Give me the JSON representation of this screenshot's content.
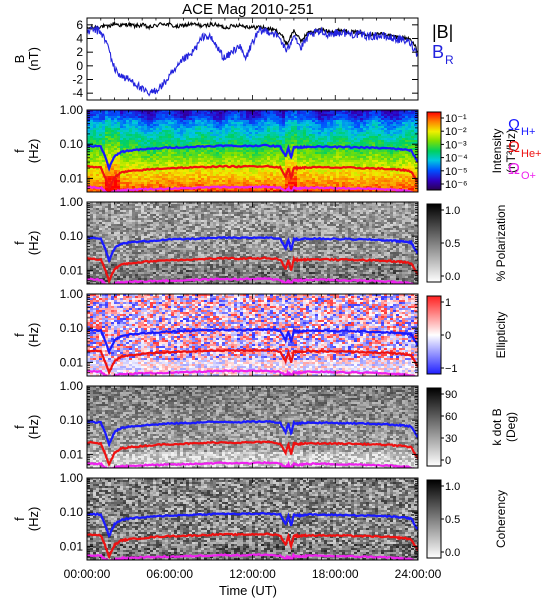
{
  "chart_data": {
    "type": "multi-panel spectrogram",
    "title": "ACE Mag 2010-251",
    "xlabel": "Time (UT)",
    "x_ticks": [
      "00:00:00",
      "06:00:00",
      "12:00:00",
      "18:00:00",
      "24:00:00"
    ],
    "x_range_hours": [
      0,
      24
    ],
    "freq_ticks": [
      "1.00",
      "0.10",
      "0.01"
    ],
    "freq_range_hz": [
      0.004,
      1.0
    ],
    "freq_scale": "log",
    "panels": [
      {
        "id": "b-panel",
        "ylabel_top": "B",
        "ylabel_bottom": "(nT)",
        "y_ticks": [
          "6",
          "4",
          "2",
          "0",
          "-2",
          "-4"
        ],
        "y_range": [
          -5,
          7
        ],
        "series": [
          {
            "name": "|B|",
            "color": "#000000",
            "x": [
              0,
              0.5,
              1,
              1.5,
              2,
              2.5,
              3,
              3.5,
              4,
              4.5,
              5,
              5.5,
              6,
              6.5,
              7,
              7.5,
              8,
              8.5,
              9,
              9.5,
              10,
              10.5,
              11,
              11.5,
              12,
              12.5,
              13,
              13.5,
              14,
              14.5,
              15,
              15.5,
              16,
              16.5,
              17,
              17.5,
              18,
              18.5,
              19,
              19.5,
              20,
              20.5,
              21,
              21.5,
              22,
              22.5,
              23,
              23.5,
              24
            ],
            "values": [
              5.5,
              5.6,
              5.8,
              5.7,
              6.2,
              5.9,
              6.1,
              5.8,
              6.0,
              5.6,
              5.9,
              6.2,
              6.0,
              5.7,
              5.9,
              6.1,
              6.0,
              5.8,
              6.1,
              5.9,
              5.6,
              5.8,
              6.0,
              5.8,
              5.6,
              5.7,
              5.5,
              5.3,
              4.8,
              3.2,
              5.2,
              3.6,
              4.8,
              5.1,
              5.3,
              5.0,
              5.1,
              5.2,
              5.0,
              4.9,
              4.8,
              4.6,
              4.7,
              4.6,
              4.4,
              4.2,
              4.1,
              3.9,
              2.0
            ]
          },
          {
            "name": "B",
            "name_subscript": "R",
            "color": "#2222dd",
            "x": [
              0,
              0.5,
              1,
              1.5,
              2,
              2.5,
              3,
              3.5,
              4,
              4.5,
              5,
              5.5,
              6,
              6.5,
              7,
              7.5,
              8,
              8.5,
              9,
              9.5,
              10,
              10.5,
              11,
              11.5,
              12,
              12.5,
              13,
              13.5,
              14,
              14.5,
              15,
              15.5,
              16,
              16.5,
              17,
              17.5,
              18,
              18.5,
              19,
              19.5,
              20,
              20.5,
              21,
              21.5,
              22,
              22.5,
              23,
              23.5,
              24
            ],
            "values": [
              5.0,
              5.3,
              5.0,
              3.0,
              -0.5,
              -1.5,
              -2.0,
              -2.5,
              -3.5,
              -4.2,
              -3.5,
              -2.8,
              -1.5,
              -0.5,
              1.0,
              1.5,
              3.0,
              4.5,
              4.0,
              2.5,
              1.0,
              2.0,
              3.0,
              1.0,
              3.5,
              5.0,
              5.2,
              4.8,
              4.0,
              2.0,
              4.8,
              2.5,
              4.2,
              4.8,
              4.9,
              4.7,
              4.8,
              4.9,
              4.7,
              4.6,
              4.5,
              4.3,
              4.4,
              4.3,
              4.1,
              3.9,
              3.7,
              3.3,
              1.5
            ]
          }
        ]
      },
      {
        "id": "intensity-panel",
        "ylabel_top": "f",
        "ylabel_bottom": "(Hz)",
        "colorbar_label": "Intensity",
        "colorbar_units": "(nT²/Hz)",
        "colorbar_ticks": [
          "10⁻¹",
          "10⁻²",
          "10⁻³",
          "10⁻⁴",
          "10⁻⁵",
          "10⁻⁶"
        ],
        "colormap": "rainbow"
      },
      {
        "id": "polarization-panel",
        "ylabel_top": "f",
        "ylabel_bottom": "(Hz)",
        "colorbar_label": "% Polarization",
        "colorbar_ticks": [
          "1.0",
          "0.5",
          "0.0"
        ],
        "colormap": "gray"
      },
      {
        "id": "ellipticity-panel",
        "ylabel_top": "f",
        "ylabel_bottom": "(Hz)",
        "colorbar_label": "Ellipticity",
        "colorbar_ticks": [
          "1",
          "0",
          "−1"
        ],
        "colormap": "red-white-blue"
      },
      {
        "id": "kdotb-panel",
        "ylabel_top": "f",
        "ylabel_bottom": "(Hz)",
        "colorbar_label": "k dot B",
        "colorbar_units": "(Deg)",
        "colorbar_ticks": [
          "90",
          "60",
          "30",
          "0"
        ],
        "colormap": "gray"
      },
      {
        "id": "coherency-panel",
        "ylabel_top": "f",
        "ylabel_bottom": "(Hz)",
        "colorbar_label": "Coherency",
        "colorbar_ticks": [
          "1.0",
          "0.5",
          "0.0"
        ],
        "colormap": "gray"
      }
    ],
    "gyrofrequency_lines": [
      {
        "name": "Ω",
        "name_subscript": "H+",
        "color": "#1a1aff",
        "x": [
          0,
          1,
          1.3,
          1.6,
          2,
          2.5,
          3,
          4,
          5,
          6,
          7,
          8,
          9,
          10,
          11,
          12,
          13,
          14,
          14.4,
          14.6,
          14.8,
          15,
          15.3,
          15.6,
          16,
          17,
          18,
          19,
          20,
          21,
          22,
          22.5,
          23,
          23.5,
          24
        ],
        "values": [
          0.09,
          0.085,
          0.045,
          0.02,
          0.045,
          0.06,
          0.065,
          0.07,
          0.075,
          0.08,
          0.082,
          0.085,
          0.088,
          0.09,
          0.088,
          0.09,
          0.092,
          0.085,
          0.045,
          0.08,
          0.04,
          0.085,
          0.08,
          0.082,
          0.085,
          0.084,
          0.083,
          0.082,
          0.08,
          0.078,
          0.075,
          0.072,
          0.07,
          0.065,
          0.03
        ]
      },
      {
        "name": "Ω",
        "name_subscript": "He+",
        "color": "#ee1111",
        "x": [
          0,
          1,
          1.3,
          1.6,
          2,
          2.5,
          3,
          4,
          5,
          6,
          7,
          8,
          9,
          10,
          11,
          12,
          13,
          14,
          14.4,
          14.6,
          14.8,
          15,
          15.3,
          15.6,
          16,
          17,
          18,
          19,
          20,
          21,
          22,
          22.5,
          23,
          23.5,
          24
        ],
        "values": [
          0.0225,
          0.021,
          0.011,
          0.005,
          0.011,
          0.015,
          0.016,
          0.0175,
          0.019,
          0.02,
          0.0205,
          0.021,
          0.022,
          0.0225,
          0.022,
          0.0225,
          0.023,
          0.021,
          0.011,
          0.02,
          0.01,
          0.021,
          0.02,
          0.0205,
          0.021,
          0.021,
          0.0207,
          0.0205,
          0.02,
          0.0195,
          0.0187,
          0.018,
          0.0175,
          0.016,
          0.0075
        ]
      },
      {
        "name": "Ω",
        "name_subscript": "O+",
        "color": "#ee22ee",
        "x": [
          0,
          1,
          1.3,
          1.6,
          2,
          2.5,
          3,
          4,
          5,
          6,
          7,
          8,
          9,
          10,
          11,
          12,
          13,
          14,
          14.4,
          14.6,
          14.8,
          15,
          15.3,
          15.6,
          16,
          17,
          18,
          19,
          20,
          21,
          22,
          22.5,
          23,
          23.5,
          24
        ],
        "values": [
          0.0056,
          0.0053,
          0.0042,
          0.0035,
          0.0042,
          0.0045,
          0.0046,
          0.0048,
          0.0049,
          0.005,
          0.0051,
          0.0053,
          0.0055,
          0.0056,
          0.0055,
          0.0056,
          0.0057,
          0.0053,
          0.0042,
          0.005,
          0.004,
          0.0053,
          0.005,
          0.0051,
          0.0053,
          0.0053,
          0.0052,
          0.0051,
          0.005,
          0.0049,
          0.0047,
          0.0045,
          0.0044,
          0.0041,
          0.0035
        ]
      }
    ]
  }
}
